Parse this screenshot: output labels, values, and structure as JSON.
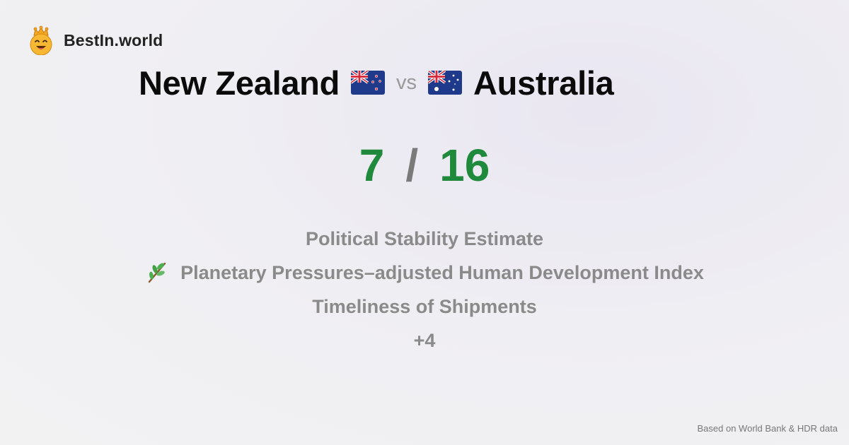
{
  "brand": {
    "name": "BestIn.world",
    "icon": "crowned-smiley-icon"
  },
  "comparison": {
    "left_country": "New Zealand",
    "left_flag": "new-zealand-flag-icon",
    "vs_label": "vs",
    "right_country": "Australia",
    "right_flag": "australia-flag-icon"
  },
  "score": {
    "left": "7",
    "separator": "/",
    "right": "16",
    "color": "#1f8a3b"
  },
  "metrics": [
    {
      "label": "Political Stability Estimate",
      "icon": ""
    },
    {
      "label": "Planetary Pressures–adjusted Human Development Index",
      "icon": "leaf-branch-icon"
    },
    {
      "label": "Timeliness of Shipments",
      "icon": ""
    },
    {
      "label": "+4",
      "icon": ""
    }
  ],
  "footer": {
    "source": "Based on World Bank & HDR data"
  }
}
